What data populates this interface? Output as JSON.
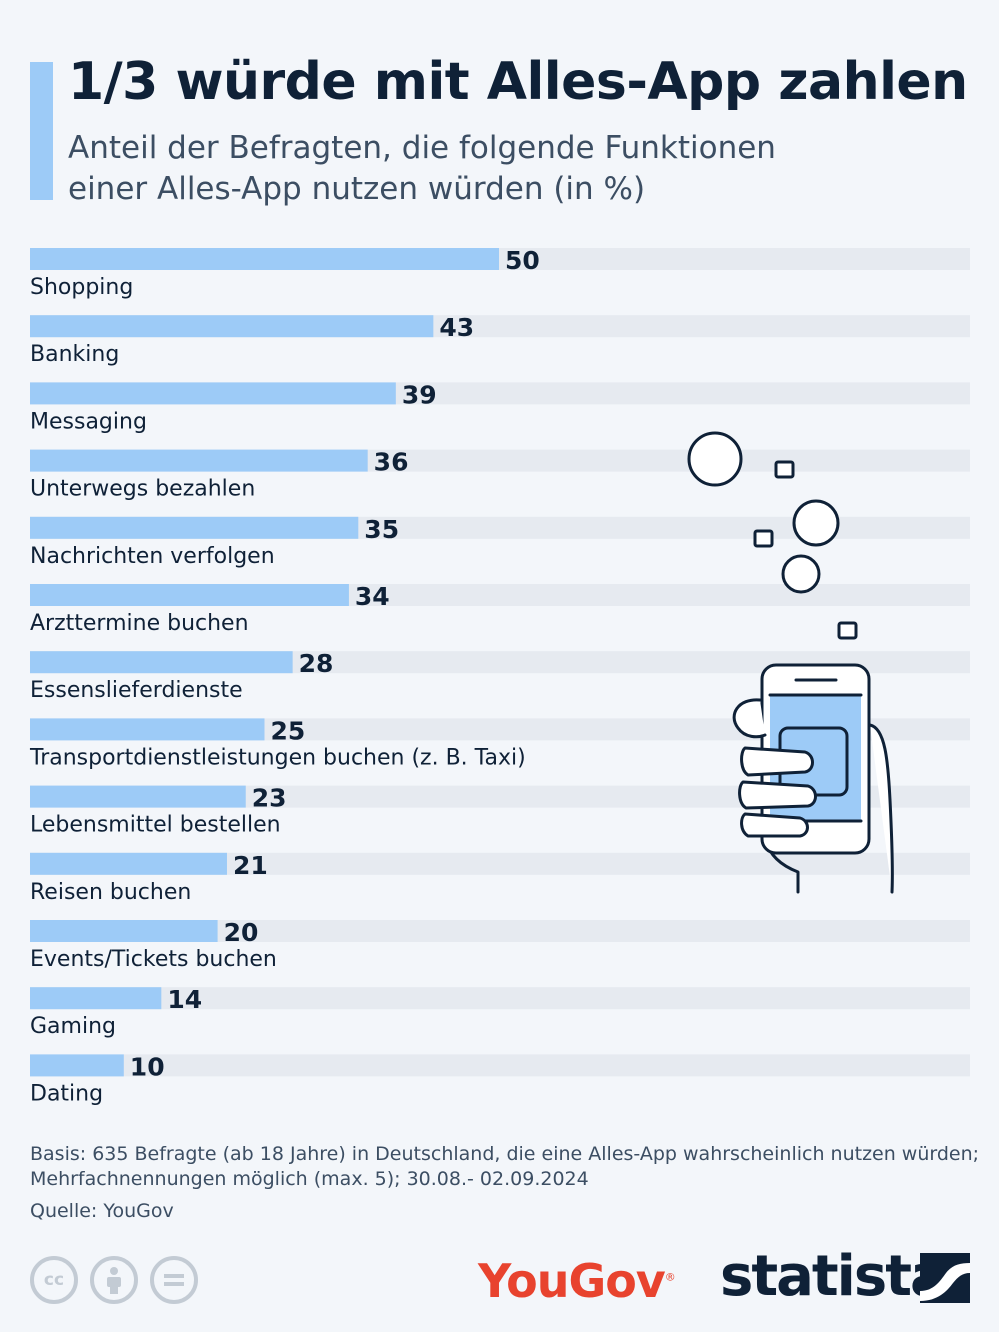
{
  "header": {
    "title": "1/3 würde mit Alles-App zahlen",
    "subtitle": "Anteil der Befragten, die folgende Funktionen einer Alles-App nutzen würden (in %)"
  },
  "chart_data": {
    "type": "bar",
    "orientation": "horizontal",
    "categories": [
      "Shopping",
      "Banking",
      "Messaging",
      "Unterwegs bezahlen",
      "Nachrichten verfolgen",
      "Arzttermine buchen",
      "Essenslieferdienste",
      "Transportdienstleistungen buchen (z. B. Taxi)",
      "Lebensmittel bestellen",
      "Reisen buchen",
      "Events/Tickets buchen",
      "Gaming",
      "Dating"
    ],
    "values": [
      50,
      43,
      39,
      36,
      35,
      34,
      28,
      25,
      23,
      21,
      20,
      14,
      10
    ],
    "xlim": [
      0,
      100
    ],
    "unit": "%",
    "bar_color": "#9dcbf7",
    "track_color": "#e6eaf0"
  },
  "footer": {
    "basis": "Basis: 635 Befragte (ab 18 Jahre) in Deutschland, die eine Alles-App wahrscheinlich nutzen würden; Mehrfachnennungen möglich (max. 5); 30.08.- 02.09.2024",
    "source": "Quelle: YouGov",
    "yougov_logo": "YouGov",
    "yougov_registered": "®",
    "statista_logo": "statista"
  },
  "icons": [
    "cc-icon",
    "attribution-icon",
    "no-derivatives-icon",
    "phone-hand-icon",
    "statista-mark-icon"
  ],
  "colors": {
    "accent": "#9dcbf7",
    "text": "#0f2137",
    "yougov": "#e8432e"
  }
}
